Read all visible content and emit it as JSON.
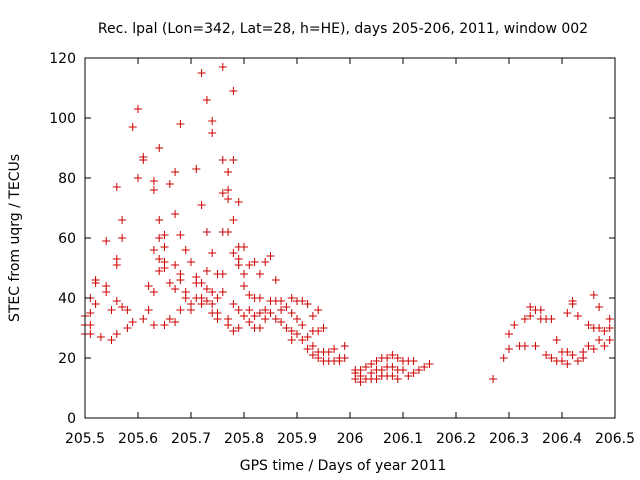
{
  "chart_data": {
    "type": "scatter",
    "title": "Rec. lpal (Lon=342, Lat=28, h=HE), days 205-206, 2011, window 002",
    "xlabel": "GPS time / Days of year 2011",
    "ylabel": "STEC from uqrg / TECUs",
    "xlim": [
      205.5,
      206.5
    ],
    "ylim": [
      0,
      120
    ],
    "x_ticks": [
      205.5,
      205.6,
      205.7,
      205.8,
      205.9,
      206,
      206.1,
      206.2,
      206.3,
      206.4,
      206.5
    ],
    "x_tick_labels": [
      "205.5",
      "205.6",
      "205.7",
      "205.8",
      "205.9",
      "206",
      "206.1",
      "206.2",
      "206.3",
      "206.4",
      "206.5"
    ],
    "y_ticks": [
      0,
      20,
      40,
      60,
      80,
      100,
      120
    ],
    "y_tick_labels": [
      "0",
      "20",
      "40",
      "60",
      "80",
      "100",
      "120"
    ],
    "grid": false,
    "marker": "+",
    "marker_color": "#cc0000",
    "series": [
      {
        "name": "",
        "points": [
          [
            205.5,
            34
          ],
          [
            205.5,
            31
          ],
          [
            205.5,
            28
          ],
          [
            205.51,
            40
          ],
          [
            205.51,
            35
          ],
          [
            205.51,
            31
          ],
          [
            205.51,
            28
          ],
          [
            205.52,
            46
          ],
          [
            205.52,
            45
          ],
          [
            205.52,
            38
          ],
          [
            205.53,
            27
          ],
          [
            205.54,
            44
          ],
          [
            205.54,
            42
          ],
          [
            205.54,
            59
          ],
          [
            205.55,
            26
          ],
          [
            205.55,
            36
          ],
          [
            205.56,
            77
          ],
          [
            205.56,
            53
          ],
          [
            205.56,
            51
          ],
          [
            205.56,
            39
          ],
          [
            205.56,
            28
          ],
          [
            205.57,
            66
          ],
          [
            205.57,
            60
          ],
          [
            205.57,
            37
          ],
          [
            205.58,
            36
          ],
          [
            205.58,
            30
          ],
          [
            205.59,
            97
          ],
          [
            205.59,
            32
          ],
          [
            205.6,
            103
          ],
          [
            205.6,
            80
          ],
          [
            205.61,
            87
          ],
          [
            205.61,
            86
          ],
          [
            205.61,
            33
          ],
          [
            205.62,
            44
          ],
          [
            205.62,
            36
          ],
          [
            205.63,
            79
          ],
          [
            205.63,
            76
          ],
          [
            205.63,
            56
          ],
          [
            205.63,
            42
          ],
          [
            205.63,
            31
          ],
          [
            205.64,
            90
          ],
          [
            205.64,
            66
          ],
          [
            205.64,
            60
          ],
          [
            205.64,
            53
          ],
          [
            205.64,
            49
          ],
          [
            205.65,
            61
          ],
          [
            205.65,
            57
          ],
          [
            205.65,
            52
          ],
          [
            205.65,
            50
          ],
          [
            205.65,
            31
          ],
          [
            205.66,
            78
          ],
          [
            205.66,
            45
          ],
          [
            205.66,
            33
          ],
          [
            205.67,
            82
          ],
          [
            205.67,
            68
          ],
          [
            205.67,
            51
          ],
          [
            205.67,
            43
          ],
          [
            205.67,
            32
          ],
          [
            205.68,
            98
          ],
          [
            205.68,
            61
          ],
          [
            205.68,
            48
          ],
          [
            205.68,
            46
          ],
          [
            205.68,
            36
          ],
          [
            205.69,
            56
          ],
          [
            205.69,
            42
          ],
          [
            205.69,
            40
          ],
          [
            205.7,
            52
          ],
          [
            205.7,
            38
          ],
          [
            205.7,
            36
          ],
          [
            205.71,
            83
          ],
          [
            205.71,
            47
          ],
          [
            205.71,
            45
          ],
          [
            205.71,
            40
          ],
          [
            205.72,
            115
          ],
          [
            205.72,
            71
          ],
          [
            205.72,
            45
          ],
          [
            205.72,
            40
          ],
          [
            205.72,
            38
          ],
          [
            205.73,
            106
          ],
          [
            205.73,
            62
          ],
          [
            205.73,
            49
          ],
          [
            205.73,
            43
          ],
          [
            205.73,
            39
          ],
          [
            205.74,
            95
          ],
          [
            205.74,
            99
          ],
          [
            205.74,
            55
          ],
          [
            205.74,
            42
          ],
          [
            205.74,
            38
          ],
          [
            205.74,
            35
          ],
          [
            205.75,
            48
          ],
          [
            205.75,
            40
          ],
          [
            205.75,
            35
          ],
          [
            205.75,
            33
          ],
          [
            205.76,
            117
          ],
          [
            205.76,
            86
          ],
          [
            205.76,
            75
          ],
          [
            205.76,
            62
          ],
          [
            205.76,
            48
          ],
          [
            205.76,
            42
          ],
          [
            205.77,
            82
          ],
          [
            205.77,
            62
          ],
          [
            205.77,
            76
          ],
          [
            205.77,
            73
          ],
          [
            205.77,
            33
          ],
          [
            205.77,
            31
          ],
          [
            205.78,
            109
          ],
          [
            205.78,
            86
          ],
          [
            205.78,
            66
          ],
          [
            205.78,
            55
          ],
          [
            205.78,
            38
          ],
          [
            205.78,
            29
          ],
          [
            205.79,
            72
          ],
          [
            205.79,
            57
          ],
          [
            205.79,
            53
          ],
          [
            205.79,
            51
          ],
          [
            205.79,
            36
          ],
          [
            205.79,
            30
          ],
          [
            205.8,
            57
          ],
          [
            205.8,
            48
          ],
          [
            205.8,
            44
          ],
          [
            205.8,
            34
          ],
          [
            205.81,
            51
          ],
          [
            205.81,
            41
          ],
          [
            205.81,
            36
          ],
          [
            205.81,
            32
          ],
          [
            205.82,
            52
          ],
          [
            205.82,
            40
          ],
          [
            205.82,
            34
          ],
          [
            205.82,
            30
          ],
          [
            205.83,
            48
          ],
          [
            205.83,
            40
          ],
          [
            205.83,
            35
          ],
          [
            205.83,
            30
          ],
          [
            205.84,
            52
          ],
          [
            205.84,
            36
          ],
          [
            205.84,
            33
          ],
          [
            205.85,
            54
          ],
          [
            205.85,
            39
          ],
          [
            205.85,
            35
          ],
          [
            205.86,
            46
          ],
          [
            205.86,
            39
          ],
          [
            205.86,
            33
          ],
          [
            205.87,
            39
          ],
          [
            205.87,
            36
          ],
          [
            205.87,
            32
          ],
          [
            205.88,
            37
          ],
          [
            205.88,
            30
          ],
          [
            205.89,
            40
          ],
          [
            205.89,
            35
          ],
          [
            205.89,
            29
          ],
          [
            205.89,
            26
          ],
          [
            205.9,
            39
          ],
          [
            205.9,
            33
          ],
          [
            205.9,
            28
          ],
          [
            205.91,
            39
          ],
          [
            205.91,
            31
          ],
          [
            205.91,
            26
          ],
          [
            205.92,
            38
          ],
          [
            205.92,
            27
          ],
          [
            205.92,
            23
          ],
          [
            205.93,
            34
          ],
          [
            205.93,
            29
          ],
          [
            205.93,
            24
          ],
          [
            205.93,
            21
          ],
          [
            205.94,
            36
          ],
          [
            205.94,
            29
          ],
          [
            205.94,
            22
          ],
          [
            205.94,
            20
          ],
          [
            205.95,
            30
          ],
          [
            205.95,
            22
          ],
          [
            205.95,
            19
          ],
          [
            205.96,
            22
          ],
          [
            205.96,
            19
          ],
          [
            205.97,
            23
          ],
          [
            205.97,
            19
          ],
          [
            205.98,
            20
          ],
          [
            205.98,
            19
          ],
          [
            205.99,
            24
          ],
          [
            205.99,
            20
          ],
          [
            206.01,
            16
          ],
          [
            206.01,
            15
          ],
          [
            206.01,
            13
          ],
          [
            206.02,
            16
          ],
          [
            206.02,
            14
          ],
          [
            206.02,
            12
          ],
          [
            206.03,
            17
          ],
          [
            206.03,
            13
          ],
          [
            206.04,
            18
          ],
          [
            206.04,
            15
          ],
          [
            206.04,
            13
          ],
          [
            206.05,
            19
          ],
          [
            206.05,
            16
          ],
          [
            206.05,
            13
          ],
          [
            206.06,
            20
          ],
          [
            206.06,
            16
          ],
          [
            206.06,
            14
          ],
          [
            206.07,
            20
          ],
          [
            206.07,
            17
          ],
          [
            206.07,
            14
          ],
          [
            206.08,
            21
          ],
          [
            206.08,
            17
          ],
          [
            206.08,
            14
          ],
          [
            206.09,
            20
          ],
          [
            206.09,
            16
          ],
          [
            206.09,
            13
          ],
          [
            206.1,
            19
          ],
          [
            206.1,
            16
          ],
          [
            206.11,
            19
          ],
          [
            206.11,
            14
          ],
          [
            206.12,
            19
          ],
          [
            206.12,
            15
          ],
          [
            206.13,
            16
          ],
          [
            206.14,
            17
          ],
          [
            206.15,
            18
          ],
          [
            206.27,
            13
          ],
          [
            206.29,
            20
          ],
          [
            206.3,
            28
          ],
          [
            206.3,
            23
          ],
          [
            206.31,
            31
          ],
          [
            206.32,
            24
          ],
          [
            206.33,
            33
          ],
          [
            206.33,
            24
          ],
          [
            206.34,
            37
          ],
          [
            206.34,
            34
          ],
          [
            206.35,
            36
          ],
          [
            206.35,
            24
          ],
          [
            206.36,
            36
          ],
          [
            206.36,
            33
          ],
          [
            206.37,
            33
          ],
          [
            206.37,
            21
          ],
          [
            206.38,
            33
          ],
          [
            206.38,
            20
          ],
          [
            206.39,
            26
          ],
          [
            206.39,
            19
          ],
          [
            206.4,
            22
          ],
          [
            206.4,
            19
          ],
          [
            206.41,
            35
          ],
          [
            206.41,
            22
          ],
          [
            206.41,
            18
          ],
          [
            206.42,
            39
          ],
          [
            206.42,
            38
          ],
          [
            206.42,
            21
          ],
          [
            206.43,
            34
          ],
          [
            206.43,
            19
          ],
          [
            206.44,
            22
          ],
          [
            206.44,
            20
          ],
          [
            206.45,
            31
          ],
          [
            206.45,
            24
          ],
          [
            206.46,
            41
          ],
          [
            206.46,
            30
          ],
          [
            206.46,
            23
          ],
          [
            206.47,
            37
          ],
          [
            206.47,
            30
          ],
          [
            206.47,
            26
          ],
          [
            206.48,
            29
          ],
          [
            206.48,
            24
          ],
          [
            206.49,
            33
          ],
          [
            206.49,
            30
          ],
          [
            206.49,
            26
          ]
        ]
      }
    ]
  }
}
